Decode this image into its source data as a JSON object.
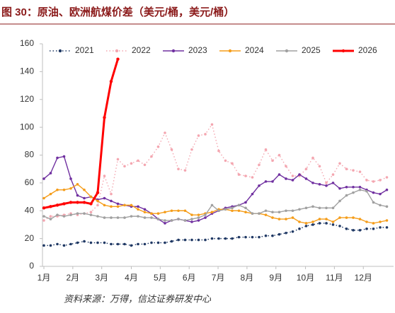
{
  "chart_data": {
    "type": "line",
    "title": "图 30：原油、欧洲航煤价差（美元/桶，美元/桶）",
    "source": "资料来源：万得，信达证券研发中心",
    "x": [
      1,
      2,
      3,
      4,
      5,
      6,
      7,
      8,
      9,
      10,
      11,
      12,
      13,
      14,
      15,
      16,
      17,
      18,
      19,
      20,
      21,
      22,
      23,
      24,
      25,
      26,
      27,
      28,
      29,
      30,
      31,
      32,
      33,
      34,
      35,
      36,
      37,
      38,
      39,
      40,
      41,
      42,
      43,
      44,
      45,
      46,
      47,
      48,
      49,
      50,
      51,
      52
    ],
    "xlim": [
      1,
      53
    ],
    "xticks": [
      {
        "value": 1,
        "label": "1月"
      },
      {
        "value": 5.3,
        "label": "2月"
      },
      {
        "value": 9.6,
        "label": "3月"
      },
      {
        "value": 14,
        "label": "4月"
      },
      {
        "value": 18.3,
        "label": "5月"
      },
      {
        "value": 22.6,
        "label": "6月"
      },
      {
        "value": 26.9,
        "label": "7月"
      },
      {
        "value": 31.2,
        "label": "8月"
      },
      {
        "value": 35.5,
        "label": "9月"
      },
      {
        "value": 39.9,
        "label": "10月"
      },
      {
        "value": 44.2,
        "label": "11月"
      },
      {
        "value": 48.5,
        "label": "12月"
      }
    ],
    "ylim": [
      0,
      160
    ],
    "yticks": [
      0,
      20,
      40,
      60,
      80,
      100,
      120,
      140,
      160
    ],
    "legend": "top",
    "series": [
      {
        "name": "2021",
        "color": "#1f3864",
        "line_style": "dotted",
        "values": [
          15,
          15,
          16,
          15,
          16,
          17,
          18,
          17,
          17,
          17,
          16,
          16,
          16,
          15,
          16,
          16,
          17,
          17,
          17,
          18,
          19,
          19,
          19,
          19,
          19,
          20,
          20,
          20,
          20,
          21,
          21,
          21,
          21,
          22,
          22,
          23,
          24,
          25,
          27,
          29,
          30,
          31,
          31,
          30,
          29,
          27,
          26,
          26,
          27,
          27,
          28,
          28
        ]
      },
      {
        "name": "2022",
        "color": "#f4a6b0",
        "line_style": "dotted",
        "values": [
          33,
          36,
          36,
          37,
          38,
          37,
          38,
          39,
          44,
          65,
          52,
          77,
          72,
          74,
          76,
          73,
          79,
          86,
          96,
          84,
          70,
          69,
          84,
          94,
          95,
          102,
          83,
          76,
          74,
          66,
          65,
          64,
          73,
          84,
          76,
          80,
          72,
          65,
          65,
          70,
          78,
          72,
          60,
          66,
          74,
          70,
          69,
          68,
          62,
          61,
          62,
          64
        ]
      },
      {
        "name": "2023",
        "color": "#7030a0",
        "line_style": "solid",
        "values": [
          63,
          67,
          78,
          79,
          63,
          51,
          49,
          50,
          48,
          49,
          47,
          45,
          44,
          43,
          43,
          41,
          38,
          34,
          31,
          33,
          34,
          33,
          32,
          33,
          35,
          38,
          40,
          42,
          43,
          44,
          46,
          52,
          58,
          61,
          61,
          66,
          63,
          62,
          66,
          63,
          60,
          59,
          58,
          60,
          56,
          57,
          57,
          57,
          55,
          53,
          52,
          55
        ]
      },
      {
        "name": "2024",
        "color": "#f59d1a",
        "line_style": "solid",
        "values": [
          49,
          52,
          55,
          55,
          56,
          59,
          55,
          50,
          47,
          44,
          43,
          43,
          44,
          44,
          41,
          39,
          38,
          38,
          39,
          40,
          40,
          40,
          37,
          37,
          38,
          39,
          41,
          41,
          40,
          40,
          39,
          38,
          38,
          37,
          35,
          34,
          34,
          35,
          32,
          31,
          32,
          34,
          34,
          32,
          35,
          35,
          35,
          34,
          32,
          31,
          32,
          33
        ]
      },
      {
        "name": "2025",
        "color": "#a0a0a0",
        "line_style": "solid",
        "values": [
          36,
          34,
          37,
          36,
          37,
          38,
          38,
          37,
          36,
          35,
          35,
          35,
          35,
          36,
          36,
          35,
          35,
          34,
          33,
          33,
          34,
          33,
          34,
          35,
          37,
          44,
          40,
          41,
          42,
          44,
          42,
          38,
          38,
          40,
          39,
          39,
          40,
          40,
          41,
          42,
          43,
          42,
          42,
          42,
          47,
          51,
          53,
          55,
          54,
          46,
          44,
          43
        ]
      },
      {
        "name": "2026",
        "color": "#ff0000",
        "line_style": "bold",
        "values": [
          42,
          43,
          44,
          45,
          46,
          46,
          46,
          45,
          53,
          107,
          133,
          149,
          null,
          null,
          null,
          null,
          null,
          null,
          null,
          null,
          null,
          null,
          null,
          null,
          null,
          null,
          null,
          null,
          null,
          null,
          null,
          null,
          null,
          null,
          null,
          null,
          null,
          null,
          null,
          null,
          null,
          null,
          null,
          null,
          null,
          null,
          null,
          null,
          null,
          null,
          null,
          null
        ]
      }
    ]
  }
}
